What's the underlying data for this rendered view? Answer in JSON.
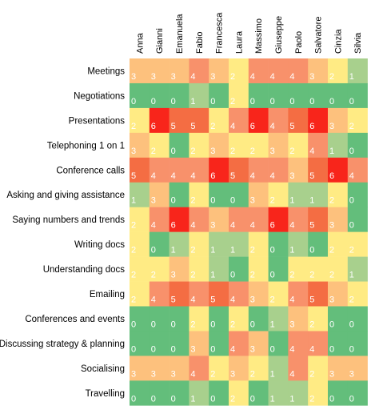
{
  "chart_data": {
    "type": "heatmap",
    "columns": [
      "Anna",
      "Gianni",
      "Emanuela",
      "Fabio",
      "Francesca",
      "Laura",
      "Massimo",
      "Giuseppe",
      "Paolo",
      "Salvatore",
      "Cinzia",
      "Silvia"
    ],
    "rows": [
      "Meetings",
      "Negotiations",
      "Presentations",
      "Telephoning 1 on 1",
      "Conference calls",
      "Asking and giving assistance",
      "Saying numbers and trends",
      "Writing docs",
      "Understanding docs",
      "Emailing",
      "Conferences and events",
      "Discussing strategy & planning",
      "Socialising",
      "Travelling"
    ],
    "values": [
      [
        3,
        3,
        3,
        4,
        3,
        2,
        4,
        4,
        4,
        3,
        2,
        1
      ],
      [
        0,
        0,
        0,
        1,
        0,
        2,
        0,
        0,
        0,
        0,
        0,
        0
      ],
      [
        2,
        6,
        5,
        5,
        2,
        4,
        6,
        4,
        5,
        6,
        3,
        2
      ],
      [
        3,
        2,
        0,
        2,
        3,
        2,
        2,
        3,
        2,
        4,
        1,
        0
      ],
      [
        5,
        4,
        4,
        4,
        6,
        5,
        4,
        4,
        3,
        5,
        6,
        4
      ],
      [
        1,
        3,
        0,
        2,
        0,
        0,
        3,
        2,
        1,
        1,
        2,
        0
      ],
      [
        2,
        4,
        6,
        4,
        3,
        4,
        4,
        6,
        4,
        5,
        3,
        0
      ],
      [
        2,
        0,
        1,
        2,
        1,
        1,
        2,
        0,
        1,
        0,
        2,
        2
      ],
      [
        2,
        2,
        3,
        2,
        1,
        0,
        2,
        0,
        2,
        2,
        2,
        1
      ],
      [
        2,
        4,
        5,
        4,
        5,
        4,
        3,
        2,
        4,
        5,
        3,
        2
      ],
      [
        0,
        0,
        0,
        2,
        0,
        2,
        0,
        1,
        3,
        2,
        0,
        0
      ],
      [
        0,
        0,
        0,
        3,
        0,
        4,
        3,
        0,
        4,
        4,
        0,
        0
      ],
      [
        3,
        3,
        3,
        4,
        2,
        3,
        2,
        1,
        4,
        2,
        3,
        3
      ],
      [
        0,
        0,
        0,
        1,
        0,
        2,
        0,
        1,
        1,
        2,
        0,
        0
      ]
    ],
    "color_scale": [
      "#63be7b",
      "#a8d08d",
      "#ffeb84",
      "#fdc17d",
      "#f8916b",
      "#f46d43",
      "#f8251b"
    ],
    "value_range": [
      0,
      6
    ],
    "legend": "none",
    "grid": false
  }
}
